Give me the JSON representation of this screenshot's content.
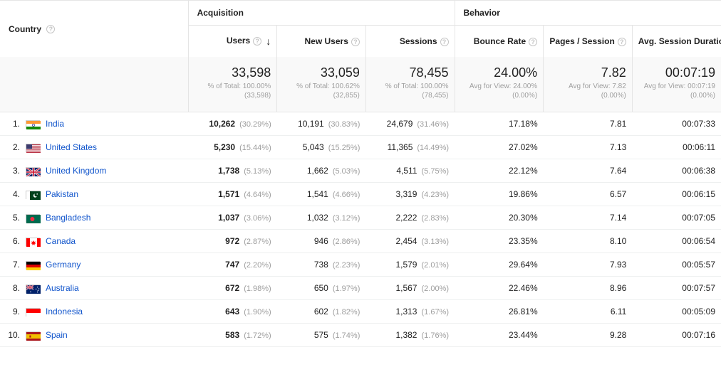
{
  "headers": {
    "dimension": "Country",
    "groups": [
      {
        "label": "Acquisition",
        "span": 3
      },
      {
        "label": "Behavior",
        "span": 3
      }
    ],
    "columns": [
      {
        "label": "Users",
        "sort": "desc"
      },
      {
        "label": "New Users"
      },
      {
        "label": "Sessions"
      },
      {
        "label": "Bounce Rate"
      },
      {
        "label": "Pages / Session"
      },
      {
        "label": "Avg. Session Duration"
      }
    ]
  },
  "summary": [
    {
      "big": "33,598",
      "line1": "% of Total: 100.00%",
      "line2": "(33,598)"
    },
    {
      "big": "33,059",
      "line1": "% of Total: 100.62%",
      "line2": "(32,855)"
    },
    {
      "big": "78,455",
      "line1": "% of Total: 100.00%",
      "line2": "(78,455)"
    },
    {
      "big": "24.00%",
      "line1": "Avg for View: 24.00%",
      "line2": "(0.00%)"
    },
    {
      "big": "7.82",
      "line1": "Avg for View: 7.82",
      "line2": "(0.00%)"
    },
    {
      "big": "00:07:19",
      "line1": "Avg for View: 00:07:19",
      "line2": "(0.00%)"
    }
  ],
  "rows": [
    {
      "rank": "1.",
      "country": "India",
      "flag": {
        "type": "tricolor-h",
        "c": [
          "#ff9933",
          "#ffffff",
          "#138808"
        ],
        "center": "#000080"
      },
      "cells": [
        {
          "v": "10,262",
          "p": "(30.29%)",
          "bold": true
        },
        {
          "v": "10,191",
          "p": "(30.83%)"
        },
        {
          "v": "24,679",
          "p": "(31.46%)"
        },
        {
          "v": "17.18%"
        },
        {
          "v": "7.81"
        },
        {
          "v": "00:07:33"
        }
      ]
    },
    {
      "rank": "2.",
      "country": "United States",
      "flag": {
        "type": "us"
      },
      "cells": [
        {
          "v": "5,230",
          "p": "(15.44%)",
          "bold": true
        },
        {
          "v": "5,043",
          "p": "(15.25%)"
        },
        {
          "v": "11,365",
          "p": "(14.49%)"
        },
        {
          "v": "27.02%"
        },
        {
          "v": "7.13"
        },
        {
          "v": "00:06:11"
        }
      ]
    },
    {
      "rank": "3.",
      "country": "United Kingdom",
      "flag": {
        "type": "uk"
      },
      "cells": [
        {
          "v": "1,738",
          "p": "(5.13%)",
          "bold": true
        },
        {
          "v": "1,662",
          "p": "(5.03%)"
        },
        {
          "v": "4,511",
          "p": "(5.75%)"
        },
        {
          "v": "22.12%"
        },
        {
          "v": "7.64"
        },
        {
          "v": "00:06:38"
        }
      ]
    },
    {
      "rank": "4.",
      "country": "Pakistan",
      "flag": {
        "type": "pk"
      },
      "cells": [
        {
          "v": "1,571",
          "p": "(4.64%)",
          "bold": true
        },
        {
          "v": "1,541",
          "p": "(4.66%)"
        },
        {
          "v": "3,319",
          "p": "(4.23%)"
        },
        {
          "v": "19.86%"
        },
        {
          "v": "6.57"
        },
        {
          "v": "00:06:15"
        }
      ]
    },
    {
      "rank": "5.",
      "country": "Bangladesh",
      "flag": {
        "type": "bd"
      },
      "cells": [
        {
          "v": "1,037",
          "p": "(3.06%)",
          "bold": true
        },
        {
          "v": "1,032",
          "p": "(3.12%)"
        },
        {
          "v": "2,222",
          "p": "(2.83%)"
        },
        {
          "v": "20.30%"
        },
        {
          "v": "7.14"
        },
        {
          "v": "00:07:05"
        }
      ]
    },
    {
      "rank": "6.",
      "country": "Canada",
      "flag": {
        "type": "ca"
      },
      "cells": [
        {
          "v": "972",
          "p": "(2.87%)",
          "bold": true
        },
        {
          "v": "946",
          "p": "(2.86%)"
        },
        {
          "v": "2,454",
          "p": "(3.13%)"
        },
        {
          "v": "23.35%"
        },
        {
          "v": "8.10"
        },
        {
          "v": "00:06:54"
        }
      ]
    },
    {
      "rank": "7.",
      "country": "Germany",
      "flag": {
        "type": "tricolor-h",
        "c": [
          "#000000",
          "#dd0000",
          "#ffce00"
        ]
      },
      "cells": [
        {
          "v": "747",
          "p": "(2.20%)",
          "bold": true
        },
        {
          "v": "738",
          "p": "(2.23%)"
        },
        {
          "v": "1,579",
          "p": "(2.01%)"
        },
        {
          "v": "29.64%"
        },
        {
          "v": "7.93"
        },
        {
          "v": "00:05:57"
        }
      ]
    },
    {
      "rank": "8.",
      "country": "Australia",
      "flag": {
        "type": "au"
      },
      "cells": [
        {
          "v": "672",
          "p": "(1.98%)",
          "bold": true
        },
        {
          "v": "650",
          "p": "(1.97%)"
        },
        {
          "v": "1,567",
          "p": "(2.00%)"
        },
        {
          "v": "22.46%"
        },
        {
          "v": "8.96"
        },
        {
          "v": "00:07:57"
        }
      ]
    },
    {
      "rank": "9.",
      "country": "Indonesia",
      "flag": {
        "type": "bicolor-h",
        "c": [
          "#ff0000",
          "#ffffff"
        ]
      },
      "cells": [
        {
          "v": "643",
          "p": "(1.90%)",
          "bold": true
        },
        {
          "v": "602",
          "p": "(1.82%)"
        },
        {
          "v": "1,313",
          "p": "(1.67%)"
        },
        {
          "v": "26.81%"
        },
        {
          "v": "6.11"
        },
        {
          "v": "00:05:09"
        }
      ]
    },
    {
      "rank": "10.",
      "country": "Spain",
      "flag": {
        "type": "es"
      },
      "cells": [
        {
          "v": "583",
          "p": "(1.72%)",
          "bold": true
        },
        {
          "v": "575",
          "p": "(1.74%)"
        },
        {
          "v": "1,382",
          "p": "(1.76%)"
        },
        {
          "v": "23.44%"
        },
        {
          "v": "9.28"
        },
        {
          "v": "00:07:16"
        }
      ]
    }
  ]
}
